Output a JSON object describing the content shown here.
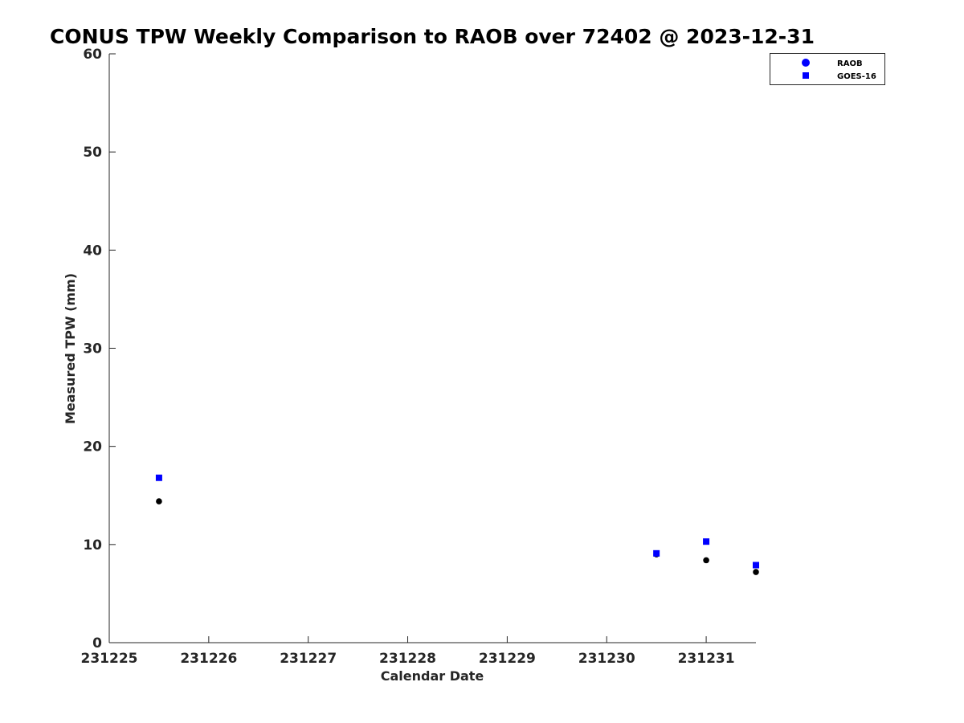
{
  "chart_data": {
    "type": "scatter",
    "title": "CONUS TPW Weekly Comparison to RAOB over 72402 @ 2023-12-31",
    "xlabel": "Calendar Date",
    "ylabel": "Measured TPW (mm)",
    "xlim": [
      "2023-12-25",
      "2023-12-31T12:00"
    ],
    "ylim": [
      0,
      60
    ],
    "x_ticks": [
      "2023-12-25",
      "2023-12-26",
      "2023-12-27",
      "2023-12-28",
      "2023-12-29",
      "2023-12-30",
      "2023-12-31"
    ],
    "x_tick_labels": [
      "231225",
      "231226",
      "231227",
      "231228",
      "231229",
      "231230",
      "231231"
    ],
    "y_ticks": [
      0,
      10,
      20,
      30,
      40,
      50,
      60
    ],
    "grid": false,
    "legend_position": "top-right",
    "series": [
      {
        "name": "RAOB",
        "marker": "circle",
        "color": "#000000",
        "legend_color": "#0000ff",
        "points": [
          {
            "x": "2023-12-25T12:00",
            "y": 14.4
          },
          {
            "x": "2023-12-30T12:00",
            "y": 9.0
          },
          {
            "x": "2023-12-31T00:00",
            "y": 8.4
          },
          {
            "x": "2023-12-31T12:00",
            "y": 7.2
          }
        ]
      },
      {
        "name": "GOES-16",
        "marker": "square",
        "color": "#0000ff",
        "legend_color": "#0000ff",
        "points": [
          {
            "x": "2023-12-25T12:00",
            "y": 16.8
          },
          {
            "x": "2023-12-30T12:00",
            "y": 9.1
          },
          {
            "x": "2023-12-31T00:00",
            "y": 10.3
          },
          {
            "x": "2023-12-31T12:00",
            "y": 7.9
          }
        ]
      }
    ]
  }
}
